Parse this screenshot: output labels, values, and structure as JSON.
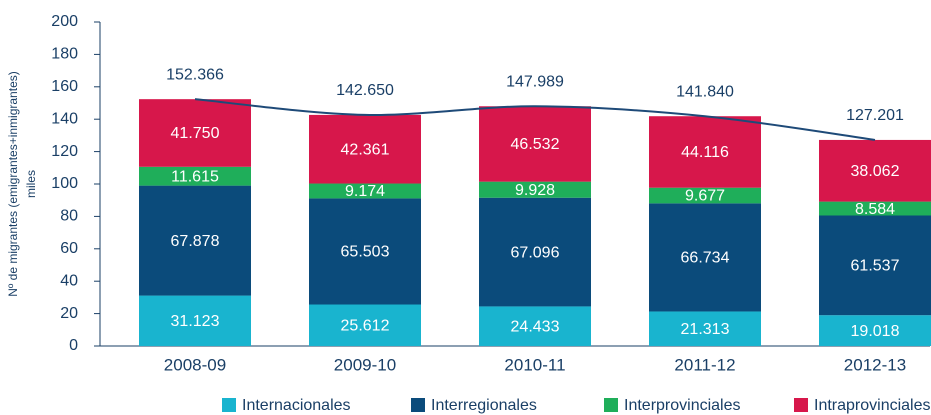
{
  "chart_data": {
    "type": "stacked_bar_line",
    "y_label": [
      "Nº de migrantes (emigrantes+inmigrantes)",
      "miles"
    ],
    "categories": [
      "2008-09",
      "2009-10",
      "2010-11",
      "2011-12",
      "2012-13"
    ],
    "series": [
      {
        "name": "Internacionales",
        "color": "#19b4cf",
        "values": [
          31.123,
          25.612,
          24.433,
          21.313,
          19.018
        ],
        "value_labels": [
          "31.123",
          "25.612",
          "24.433",
          "21.313",
          "19.018"
        ]
      },
      {
        "name": "Interregionales",
        "color": "#0b4b7b",
        "values": [
          67.878,
          65.503,
          67.096,
          66.734,
          61.537
        ],
        "value_labels": [
          "67.878",
          "65.503",
          "67.096",
          "66.734",
          "61.537"
        ]
      },
      {
        "name": "Interprovinciales",
        "color": "#1fae5a",
        "values": [
          11.615,
          9.174,
          9.928,
          9.677,
          8.584
        ],
        "value_labels": [
          "11.615",
          "9.174",
          "9.928",
          "9.677",
          "8.584"
        ]
      },
      {
        "name": "Intraprovinciales",
        "color": "#d7174b",
        "values": [
          41.75,
          42.361,
          46.532,
          44.116,
          38.062
        ],
        "value_labels": [
          "41.750",
          "42.361",
          "46.532",
          "44.116",
          "38.062"
        ]
      }
    ],
    "total": {
      "color": "#1e4a78",
      "values": [
        152.366,
        142.65,
        147.989,
        141.84,
        127.201
      ],
      "value_labels": [
        "152.366",
        "142.650",
        "147.989",
        "141.840",
        "127.201"
      ]
    },
    "ylim": [
      0,
      200
    ],
    "yticks": [
      0,
      20,
      40,
      60,
      80,
      100,
      120,
      140,
      160,
      180,
      200
    ],
    "grid": false
  }
}
